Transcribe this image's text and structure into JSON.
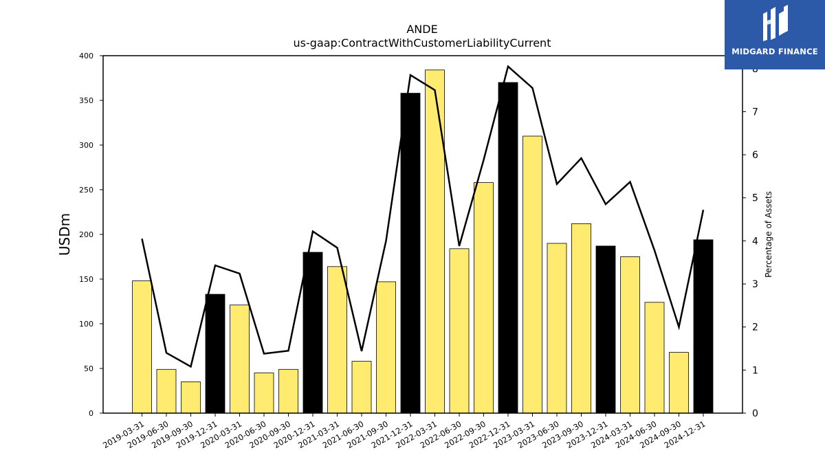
{
  "chart_data": {
    "type": "bar",
    "title": "ANDE",
    "subtitle": "us-gaap:ContractWithCustomerLiabilityCurrent",
    "ylabel": "USDm",
    "y2label": "Percentage of Assets",
    "ylim": [
      0,
      400
    ],
    "y2lim": [
      0,
      8.3
    ],
    "yticks": [
      0,
      50,
      100,
      150,
      200,
      250,
      300,
      350,
      400
    ],
    "y2ticks": [
      0,
      1,
      2,
      3,
      4,
      5,
      6,
      7,
      8
    ],
    "categories": [
      "2019-03-31",
      "2019-06-30",
      "2019-09-30",
      "2019-12-31",
      "2020-03-31",
      "2020-06-30",
      "2020-09-30",
      "2020-12-31",
      "2021-03-31",
      "2021-06-30",
      "2021-09-30",
      "2021-12-31",
      "2022-03-31",
      "2022-06-30",
      "2022-09-30",
      "2022-12-31",
      "2023-03-31",
      "2023-06-30",
      "2023-09-30",
      "2023-12-31",
      "2024-03-31",
      "2024-06-30",
      "2024-09-30",
      "2024-12-31"
    ],
    "series": [
      {
        "values": [
          148,
          49,
          35,
          133,
          121,
          45,
          49,
          180,
          164,
          58,
          147,
          358,
          384,
          184,
          258,
          370,
          310,
          190,
          212,
          187,
          175,
          124,
          68,
          194
        ],
        "colors": [
          "#ffeb70",
          "#ffeb70",
          "#ffeb70",
          "#000000",
          "#ffeb70",
          "#ffeb70",
          "#ffeb70",
          "#000000",
          "#ffeb70",
          "#ffeb70",
          "#ffeb70",
          "#000000",
          "#ffeb70",
          "#ffeb70",
          "#ffeb70",
          "#000000",
          "#ffeb70",
          "#ffeb70",
          "#ffeb70",
          "#000000",
          "#ffeb70",
          "#ffeb70",
          "#ffeb70",
          "#000000"
        ]
      },
      {
        "type": "line",
        "axis": "right",
        "color": "#000000",
        "values": [
          4.05,
          1.4,
          1.08,
          3.43,
          3.24,
          1.38,
          1.45,
          4.22,
          3.84,
          1.44,
          4.0,
          7.85,
          7.5,
          3.88,
          5.88,
          8.05,
          7.55,
          5.32,
          5.92,
          4.85,
          5.37,
          3.78,
          2.0,
          4.72
        ]
      }
    ],
    "grid": false,
    "legend": "none"
  },
  "logo": {
    "text": "MIDGARD FINANCE",
    "background": "#2d5aa8",
    "icon": "midgard-logo-icon"
  }
}
